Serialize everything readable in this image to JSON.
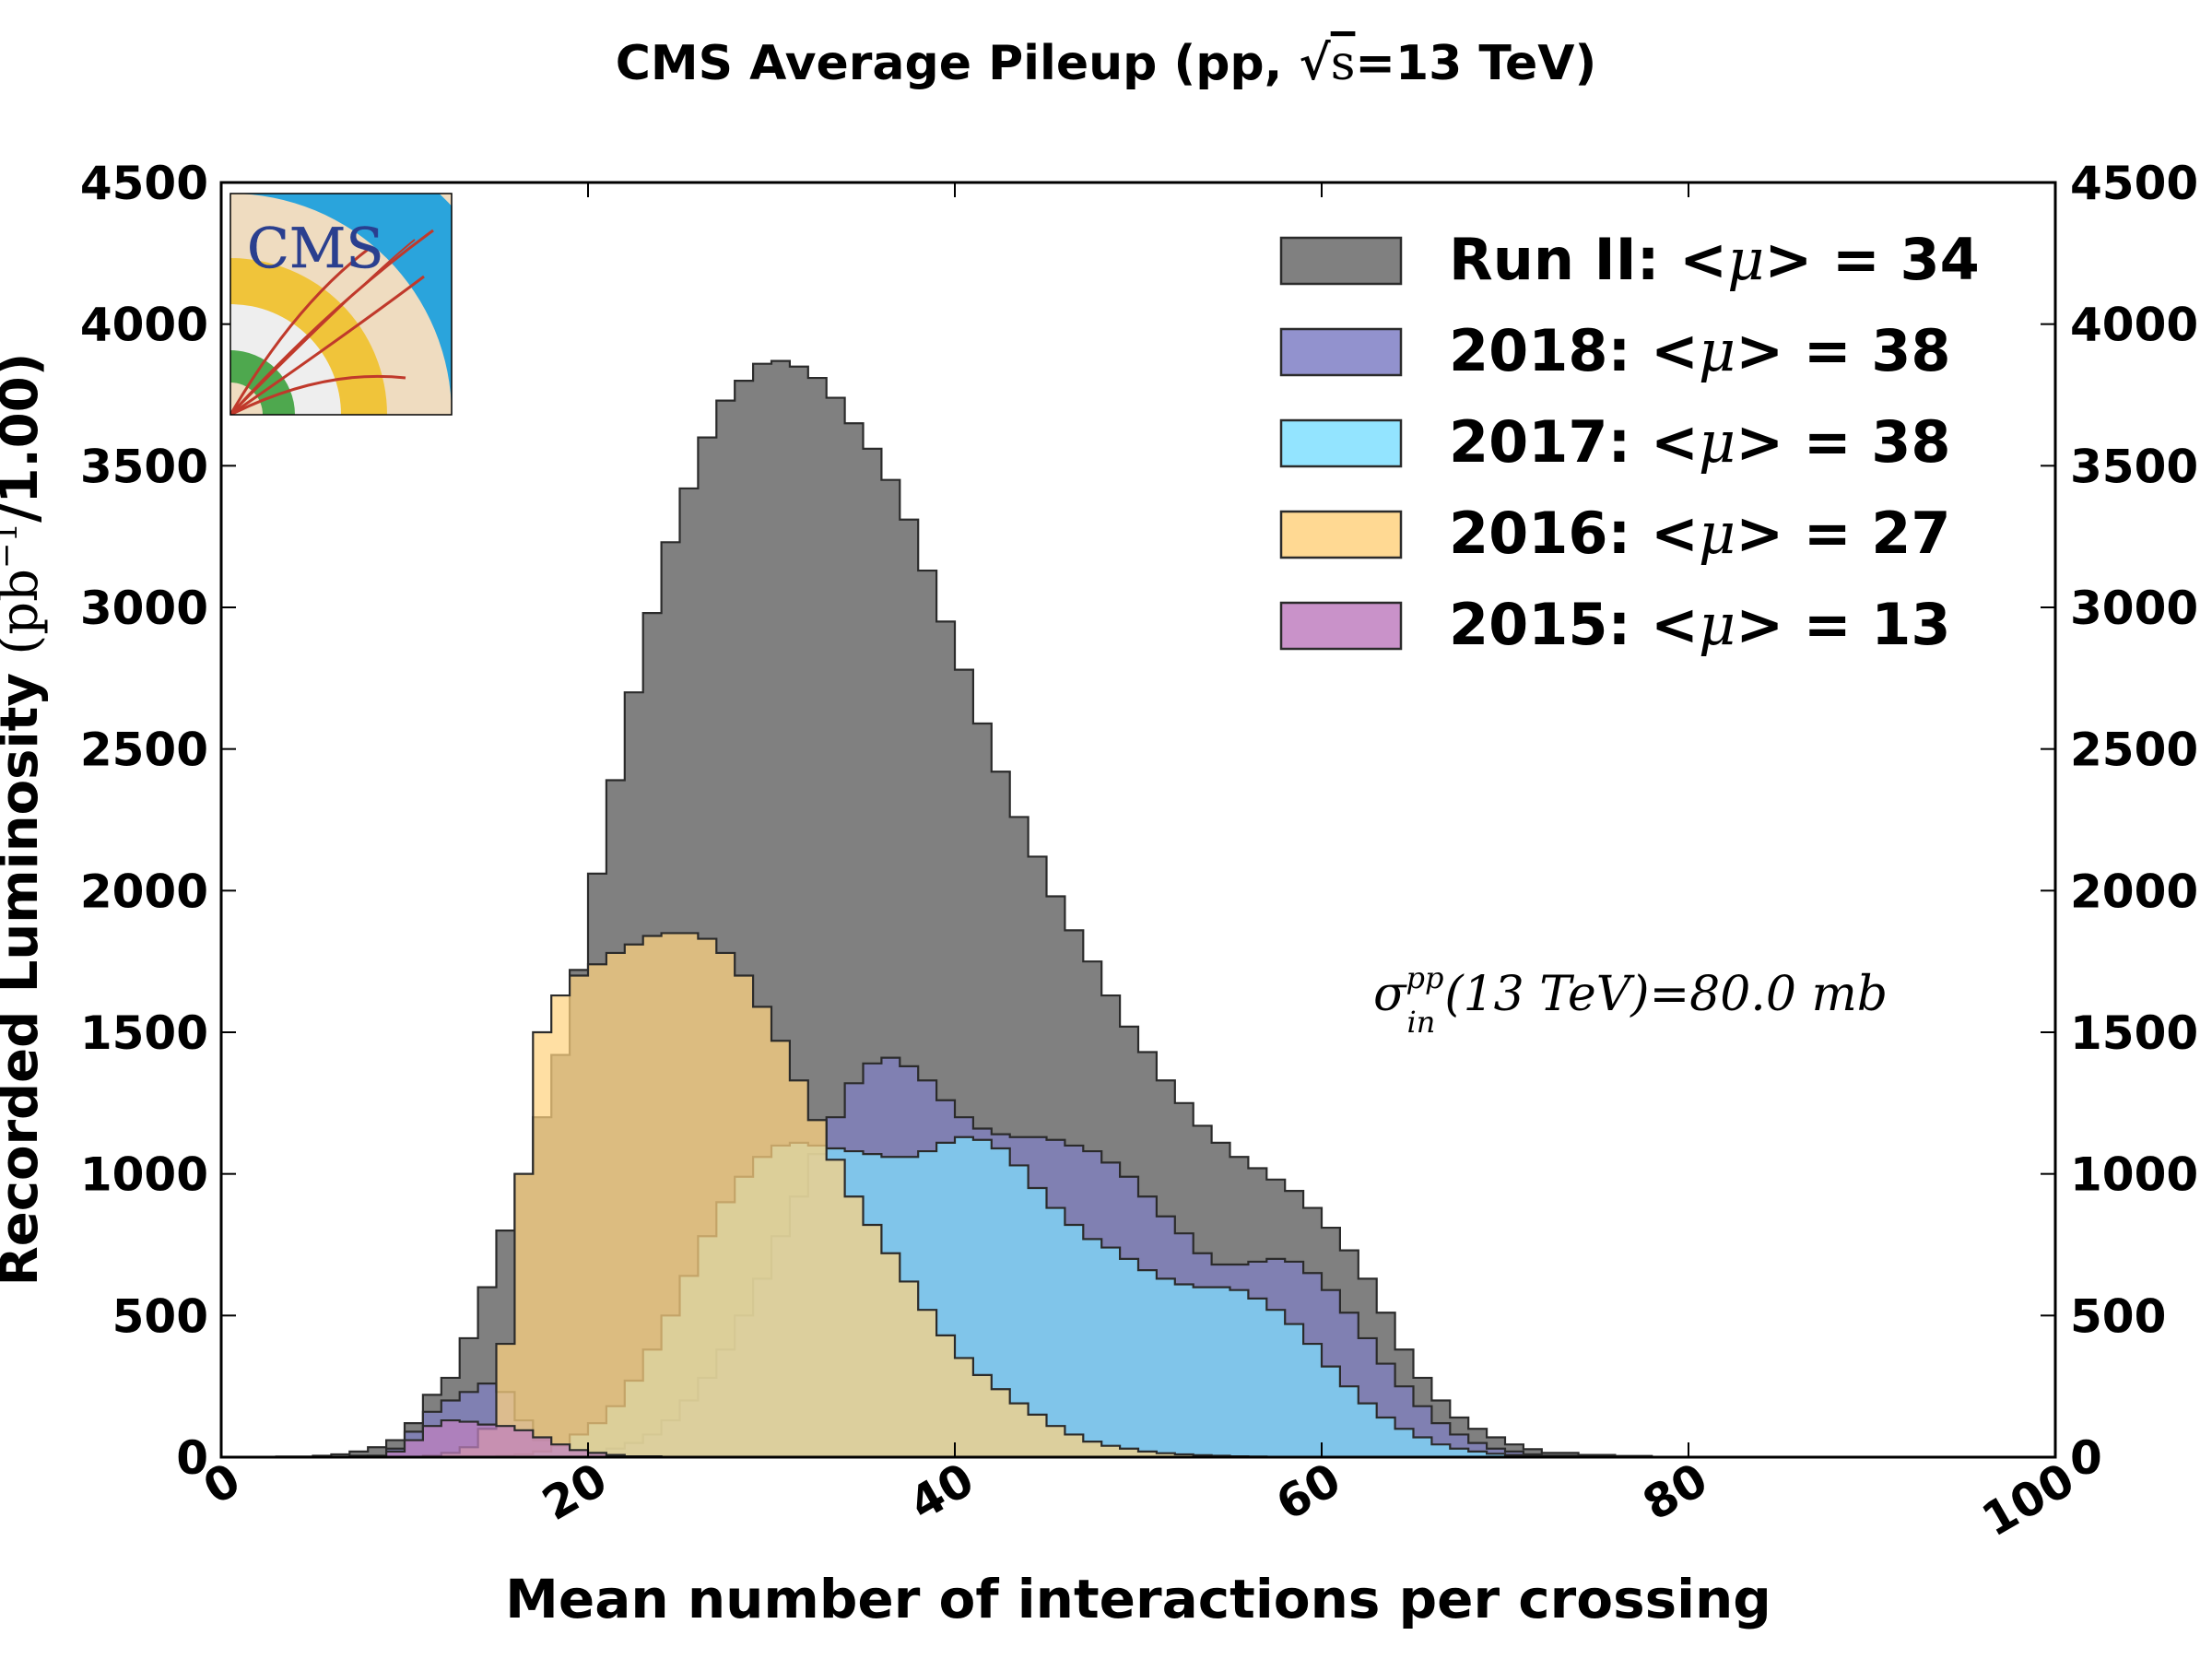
{
  "chart_data": {
    "type": "area",
    "title": "CMS Average Pileup (pp, √s=13 TeV)",
    "title_parts": {
      "pre": "CMS Average Pileup (pp, ",
      "sqrt": "√",
      "s": "s",
      "post": "=13 TeV)"
    },
    "xlabel": "Mean number of interactions per crossing",
    "ylabel": "Recorded Luminosity (pb⁻¹/1.00)",
    "ylabel_parts": {
      "main": "Recorded Luminosity ",
      "unit": "(pb",
      "exp": "−1",
      "tail": "/1.00)"
    },
    "xlim": [
      0,
      100
    ],
    "ylim": [
      0,
      4500
    ],
    "xticks": [
      "0",
      "20",
      "40",
      "60",
      "80",
      "100"
    ],
    "yticks": [
      "0",
      "500",
      "1000",
      "1500",
      "2000",
      "2500",
      "3000",
      "3500",
      "4000",
      "4500"
    ],
    "annotation": "σ_in^pp(13 TeV)=80.0 mb",
    "annotation_parts": {
      "sigma": "σ",
      "sup": "pp",
      "sub": "in",
      "mid": "(13 TeV)",
      "eq": "=80.0 mb"
    },
    "legend_position": "top-right",
    "logo": "CMS",
    "series": [
      {
        "name": "Run II: <μ> = 34",
        "name_parts": {
          "pre": "Run II: <",
          "mu": "μ",
          "post": "> = 34"
        },
        "color": "#808080",
        "x": [
          3,
          5,
          6,
          7,
          8,
          9,
          10,
          11,
          12,
          13,
          14,
          15,
          16,
          17,
          18,
          19,
          20,
          21,
          22,
          23,
          24,
          25,
          26,
          27,
          28,
          29,
          30,
          31,
          32,
          33,
          34,
          35,
          36,
          37,
          38,
          39,
          40,
          41,
          42,
          43,
          44,
          45,
          46,
          47,
          48,
          49,
          50,
          51,
          52,
          53,
          54,
          55,
          56,
          57,
          58,
          59,
          60,
          61,
          62,
          63,
          64,
          65,
          66,
          67,
          68,
          69,
          70,
          71,
          72,
          74,
          76,
          78
        ],
        "values": [
          2,
          5,
          10,
          20,
          35,
          60,
          120,
          220,
          280,
          420,
          600,
          800,
          1000,
          1200,
          1420,
          1720,
          2060,
          2390,
          2700,
          2980,
          3230,
          3420,
          3600,
          3730,
          3800,
          3860,
          3870,
          3850,
          3810,
          3740,
          3650,
          3560,
          3450,
          3310,
          3130,
          2950,
          2780,
          2590,
          2420,
          2260,
          2120,
          1980,
          1860,
          1750,
          1630,
          1520,
          1430,
          1330,
          1250,
          1170,
          1110,
          1060,
          1020,
          980,
          940,
          880,
          810,
          730,
          630,
          510,
          380,
          280,
          200,
          140,
          100,
          70,
          45,
          28,
          15,
          8,
          4,
          0
        ]
      },
      {
        "name": "2018: <μ> = 38",
        "name_parts": {
          "pre": "2018: <",
          "mu": "μ",
          "post": "> = 38"
        },
        "color": "#7f7fc5",
        "x": [
          5,
          7,
          9,
          10,
          11,
          12,
          13,
          14,
          15,
          16,
          17,
          18,
          19,
          20,
          21,
          22,
          23,
          24,
          25,
          26,
          27,
          28,
          29,
          30,
          31,
          32,
          33,
          34,
          35,
          36,
          37,
          38,
          39,
          40,
          41,
          42,
          43,
          44,
          45,
          46,
          47,
          48,
          49,
          50,
          51,
          52,
          53,
          54,
          55,
          56,
          57,
          58,
          59,
          60,
          61,
          62,
          63,
          64,
          65,
          66,
          67,
          68,
          69,
          70,
          71,
          72,
          74,
          76,
          78
        ],
        "values": [
          0,
          5,
          30,
          90,
          160,
          200,
          230,
          260,
          230,
          130,
          60,
          30,
          20,
          20,
          30,
          50,
          80,
          130,
          200,
          280,
          380,
          500,
          630,
          780,
          920,
          1070,
          1200,
          1320,
          1390,
          1410,
          1380,
          1330,
          1260,
          1200,
          1160,
          1140,
          1130,
          1130,
          1120,
          1100,
          1080,
          1040,
          990,
          920,
          850,
          790,
          720,
          680,
          680,
          690,
          700,
          690,
          650,
          590,
          510,
          420,
          330,
          250,
          180,
          120,
          80,
          50,
          30,
          20,
          10,
          5,
          2,
          0,
          0
        ]
      },
      {
        "name": "2017: <μ> = 38",
        "name_parts": {
          "pre": "2017: <",
          "mu": "μ",
          "post": "> = 38"
        },
        "color": "#80dfff",
        "x": [
          15,
          16,
          17,
          18,
          19,
          20,
          21,
          22,
          23,
          24,
          25,
          26,
          27,
          28,
          29,
          30,
          31,
          32,
          33,
          34,
          35,
          36,
          37,
          38,
          39,
          40,
          41,
          42,
          43,
          44,
          45,
          46,
          47,
          48,
          49,
          50,
          51,
          52,
          53,
          54,
          55,
          56,
          57,
          58,
          59,
          60,
          61,
          62,
          63,
          64,
          65,
          66,
          67,
          68,
          69,
          70,
          71,
          72,
          74,
          76,
          78
        ],
        "values": [
          5,
          10,
          20,
          40,
          80,
          120,
          180,
          270,
          380,
          500,
          640,
          780,
          900,
          990,
          1060,
          1100,
          1110,
          1100,
          1090,
          1080,
          1070,
          1060,
          1060,
          1080,
          1110,
          1130,
          1120,
          1090,
          1030,
          950,
          880,
          820,
          770,
          740,
          700,
          660,
          630,
          610,
          600,
          600,
          590,
          560,
          520,
          470,
          400,
          320,
          250,
          190,
          140,
          100,
          70,
          45,
          30,
          20,
          12,
          8,
          5,
          3,
          2,
          1,
          0
        ]
      },
      {
        "name": "2016: <μ> = 27",
        "name_parts": {
          "pre": "2016: <",
          "mu": "μ",
          "post": "> = 27"
        },
        "color": "#ffd280",
        "x": [
          10,
          11,
          12,
          13,
          14,
          15,
          16,
          17,
          18,
          19,
          20,
          21,
          22,
          23,
          24,
          25,
          26,
          27,
          28,
          29,
          30,
          31,
          32,
          33,
          34,
          35,
          36,
          37,
          38,
          39,
          40,
          41,
          42,
          43,
          44,
          45,
          46,
          47,
          48,
          49,
          50,
          51,
          52,
          53,
          54,
          55,
          56,
          57,
          58
        ],
        "values": [
          0,
          5,
          15,
          35,
          100,
          400,
          1000,
          1500,
          1630,
          1700,
          1740,
          1780,
          1810,
          1840,
          1850,
          1850,
          1830,
          1780,
          1700,
          1590,
          1470,
          1330,
          1190,
          1050,
          920,
          820,
          720,
          620,
          520,
          430,
          350,
          290,
          240,
          190,
          150,
          110,
          80,
          55,
          40,
          30,
          20,
          14,
          10,
          7,
          5,
          3,
          2,
          1,
          0
        ]
      },
      {
        "name": "2015: <μ> = 13",
        "name_parts": {
          "pre": "2015: <",
          "mu": "μ",
          "post": "> = 13"
        },
        "color": "#bf7fbf",
        "x": [
          8,
          9,
          10,
          11,
          12,
          13,
          14,
          15,
          16,
          17,
          18,
          19,
          20,
          21,
          22,
          24
        ],
        "values": [
          5,
          20,
          60,
          110,
          130,
          125,
          115,
          110,
          95,
          70,
          45,
          25,
          15,
          8,
          3,
          0
        ]
      }
    ]
  }
}
